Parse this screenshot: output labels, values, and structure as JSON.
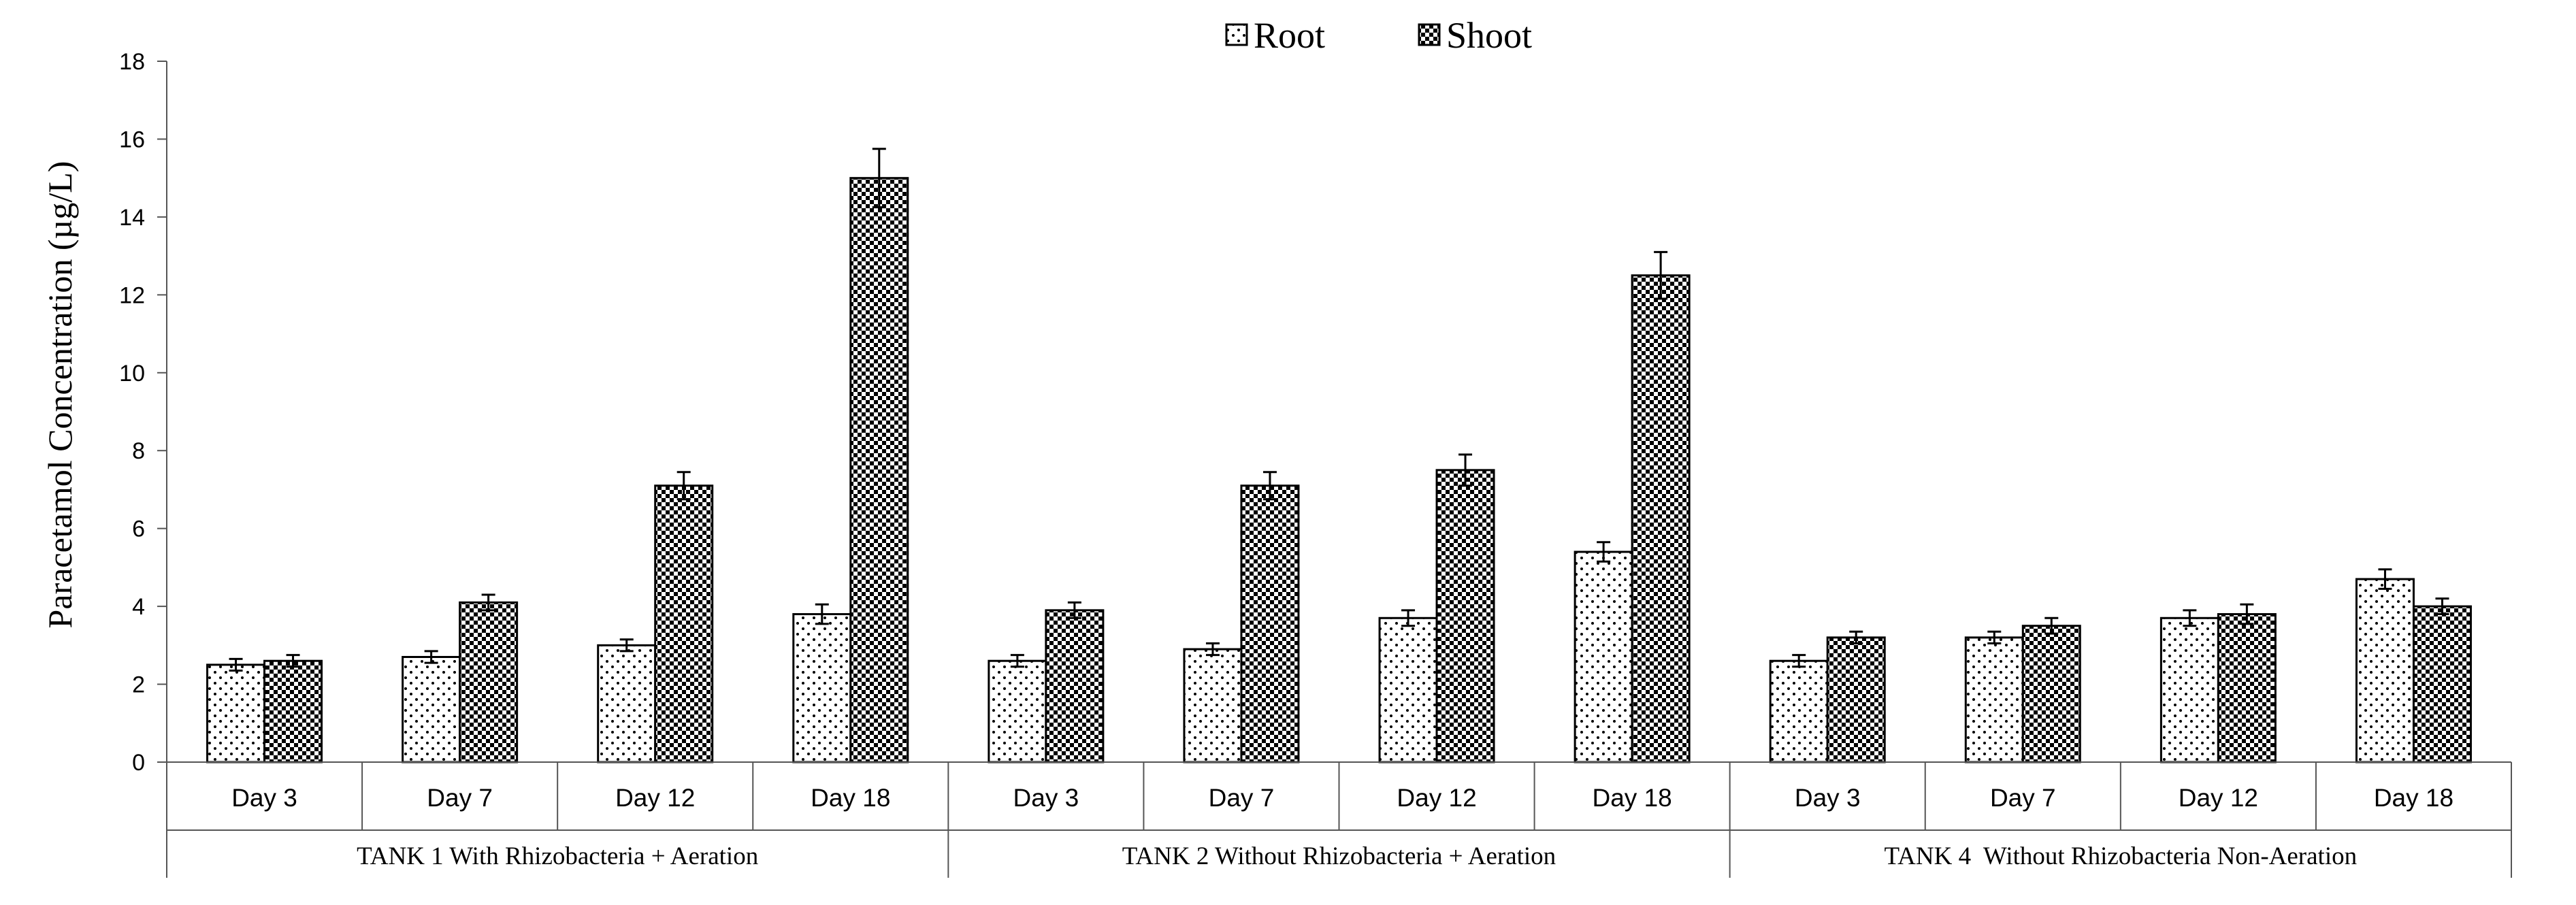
{
  "chart_data": {
    "type": "bar",
    "title": "",
    "xlabel": "",
    "ylabel": "Paracetamol Concentration (µg/L)",
    "ylim": [
      0,
      18
    ],
    "yticks": [
      0,
      2,
      4,
      6,
      8,
      10,
      12,
      14,
      16,
      18
    ],
    "groups": [
      "TANK 1 With Rhizobacteria + Aeration",
      "TANK 2 Without Rhizobacteria + Aeration",
      "TANK 4  Without Rhizobacteria Non-Aeration"
    ],
    "days": [
      "Day 3",
      "Day 7",
      "Day 12",
      "Day 18"
    ],
    "legend": [
      "Root",
      "Shoot"
    ],
    "legend_position": "top-center",
    "series": [
      {
        "name": "Root",
        "pattern": "dots",
        "values": [
          2.5,
          2.7,
          3.0,
          3.8,
          2.6,
          2.9,
          3.7,
          5.4,
          2.6,
          3.2,
          3.7,
          4.7
        ],
        "errors": [
          0.15,
          0.15,
          0.15,
          0.25,
          0.15,
          0.15,
          0.2,
          0.25,
          0.15,
          0.15,
          0.2,
          0.25
        ]
      },
      {
        "name": "Shoot",
        "pattern": "checker",
        "values": [
          2.6,
          4.1,
          7.1,
          15.0,
          3.9,
          7.1,
          7.5,
          12.5,
          3.2,
          3.5,
          3.8,
          4.0
        ],
        "errors": [
          0.15,
          0.2,
          0.35,
          0.75,
          0.2,
          0.35,
          0.4,
          0.6,
          0.15,
          0.2,
          0.25,
          0.2
        ]
      }
    ]
  }
}
